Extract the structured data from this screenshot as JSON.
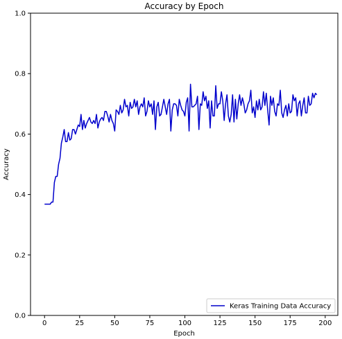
{
  "chart_data": {
    "type": "line",
    "title": "Accuracy by Epoch",
    "xlabel": "Epoch",
    "ylabel": "Accuracy",
    "xlim": [
      -10,
      209
    ],
    "ylim": [
      0.0,
      1.0
    ],
    "xticks": [
      0,
      25,
      50,
      75,
      100,
      125,
      150,
      175,
      200
    ],
    "yticks": [
      0.0,
      0.2,
      0.4,
      0.6,
      0.8,
      1.0
    ],
    "xtick_labels": [
      "0",
      "25",
      "50",
      "75",
      "100",
      "125",
      "150",
      "175",
      "200"
    ],
    "ytick_labels": [
      "0.0",
      "0.2",
      "0.4",
      "0.6",
      "0.8",
      "1.0"
    ],
    "grid": false,
    "legend_position": "bottom-right",
    "series": [
      {
        "name": "Keras Training Data Accuracy",
        "color": "#0000cc",
        "x_start": 0,
        "x_step": 1,
        "values": [
          0.368,
          0.368,
          0.368,
          0.368,
          0.368,
          0.375,
          0.375,
          0.44,
          0.46,
          0.46,
          0.5,
          0.52,
          0.57,
          0.59,
          0.615,
          0.575,
          0.575,
          0.605,
          0.58,
          0.585,
          0.615,
          0.615,
          0.6,
          0.615,
          0.63,
          0.625,
          0.665,
          0.615,
          0.645,
          0.62,
          0.635,
          0.645,
          0.655,
          0.64,
          0.635,
          0.645,
          0.635,
          0.665,
          0.62,
          0.64,
          0.65,
          0.655,
          0.645,
          0.675,
          0.675,
          0.66,
          0.64,
          0.665,
          0.645,
          0.635,
          0.61,
          0.68,
          0.675,
          0.665,
          0.695,
          0.67,
          0.68,
          0.715,
          0.69,
          0.695,
          0.66,
          0.705,
          0.685,
          0.69,
          0.715,
          0.69,
          0.71,
          0.665,
          0.69,
          0.7,
          0.69,
          0.72,
          0.66,
          0.675,
          0.71,
          0.69,
          0.7,
          0.665,
          0.71,
          0.615,
          0.69,
          0.705,
          0.66,
          0.665,
          0.69,
          0.715,
          0.69,
          0.665,
          0.7,
          0.715,
          0.61,
          0.68,
          0.7,
          0.7,
          0.695,
          0.66,
          0.715,
          0.695,
          0.68,
          0.675,
          0.66,
          0.705,
          0.72,
          0.61,
          0.765,
          0.69,
          0.69,
          0.695,
          0.7,
          0.725,
          0.615,
          0.7,
          0.695,
          0.74,
          0.71,
          0.725,
          0.685,
          0.71,
          0.62,
          0.71,
          0.66,
          0.66,
          0.76,
          0.685,
          0.7,
          0.7,
          0.74,
          0.71,
          0.645,
          0.7,
          0.73,
          0.66,
          0.64,
          0.665,
          0.73,
          0.64,
          0.715,
          0.65,
          0.7,
          0.73,
          0.695,
          0.72,
          0.7,
          0.67,
          0.68,
          0.7,
          0.71,
          0.745,
          0.67,
          0.69,
          0.655,
          0.71,
          0.68,
          0.715,
          0.68,
          0.69,
          0.74,
          0.695,
          0.735,
          0.68,
          0.63,
          0.725,
          0.695,
          0.72,
          0.675,
          0.66,
          0.7,
          0.695,
          0.745,
          0.67,
          0.655,
          0.68,
          0.695,
          0.66,
          0.7,
          0.67,
          0.675,
          0.73,
          0.71,
          0.72,
          0.66,
          0.7,
          0.71,
          0.66,
          0.695,
          0.72,
          0.67,
          0.67,
          0.725,
          0.695,
          0.7,
          0.735,
          0.72,
          0.735,
          0.73
        ]
      }
    ]
  }
}
